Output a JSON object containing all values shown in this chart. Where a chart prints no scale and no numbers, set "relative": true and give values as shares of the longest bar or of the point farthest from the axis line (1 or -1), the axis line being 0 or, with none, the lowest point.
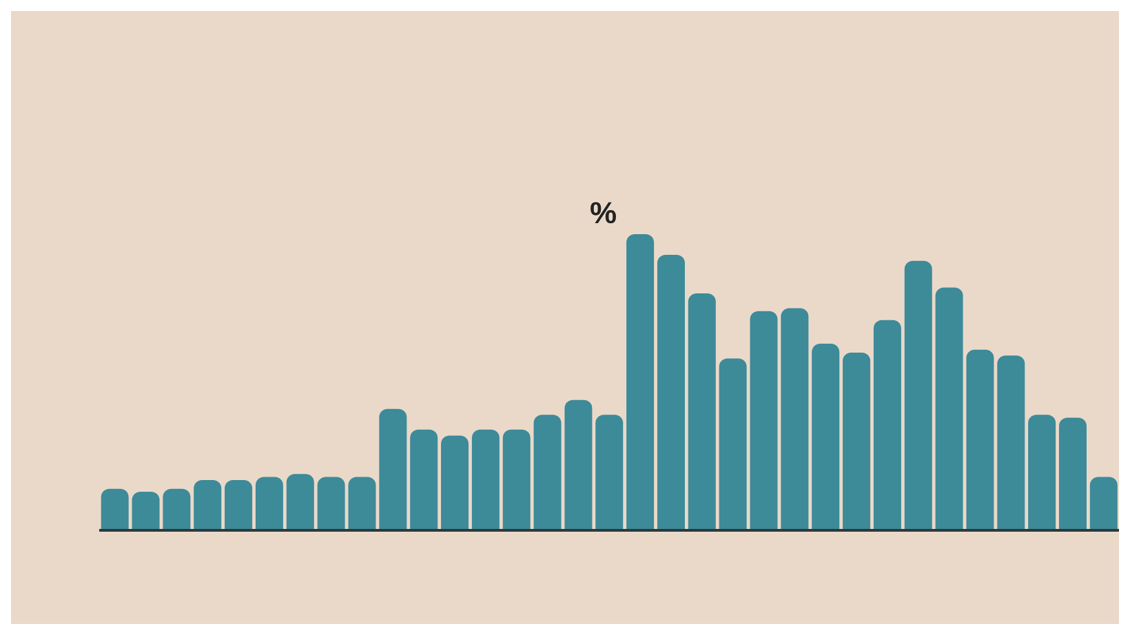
{
  "chart_data": {
    "type": "bar",
    "relative": true,
    "categories": [
      null,
      null,
      null,
      null,
      null,
      null,
      null,
      null,
      null,
      null,
      null,
      null,
      null,
      null,
      null,
      null,
      null,
      null,
      null,
      null,
      null,
      null,
      null,
      null,
      null,
      null,
      null,
      null,
      null,
      null,
      null,
      null,
      null
    ],
    "values": [
      0.14,
      0.13,
      0.14,
      0.17,
      0.17,
      0.18,
      0.19,
      0.18,
      0.18,
      0.41,
      0.34,
      0.32,
      0.34,
      0.34,
      0.39,
      0.44,
      0.39,
      1,
      0.93,
      0.8,
      0.58,
      0.74,
      0.75,
      0.63,
      0.6,
      0.71,
      0.91,
      0.82,
      0.61,
      0.59,
      0.39,
      0.38,
      0.18
    ],
    "color": "#3d8a99",
    "annotations": [
      "%"
    ]
  }
}
